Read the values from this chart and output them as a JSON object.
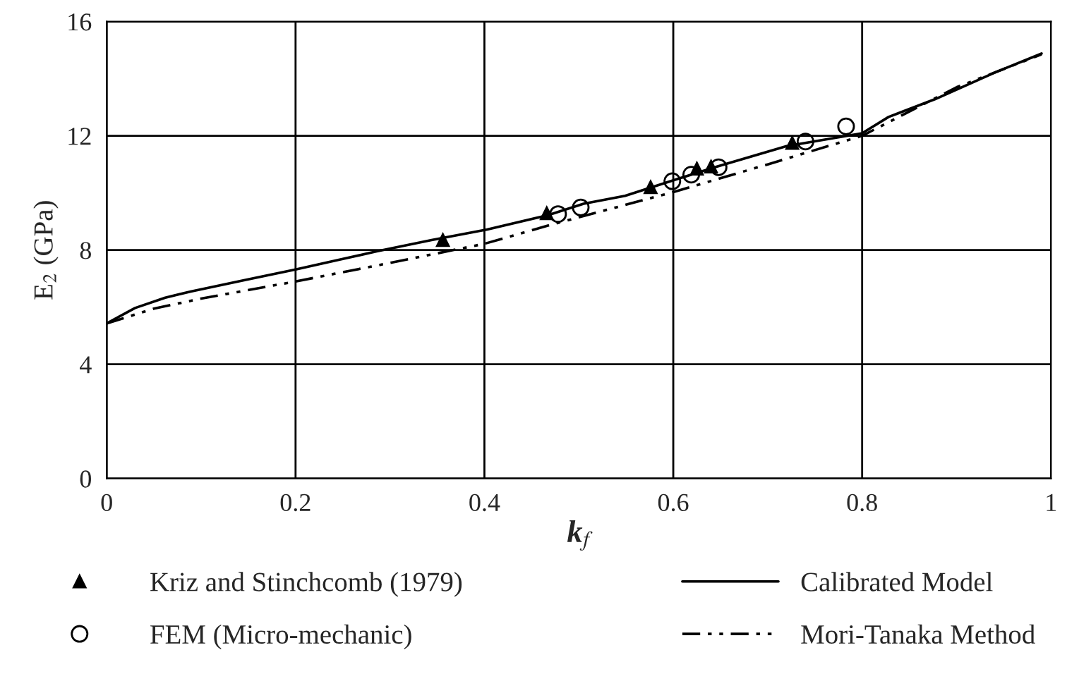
{
  "chart_data": {
    "type": "line",
    "xlabel": "k$_{f}$",
    "ylabel": "E$_{2}$ (GPa)",
    "xlim": [
      0,
      1
    ],
    "xticks": [
      0,
      0.2,
      0.4,
      0.6,
      0.8,
      1
    ],
    "ylim": [
      0,
      16
    ],
    "yticks": [
      0,
      4,
      8,
      12,
      16
    ],
    "grid": true,
    "legend": "bottom",
    "series": [
      {
        "name": "Kriz and Stinchcomb (1979)",
        "type": "scatter",
        "marker": "triangle",
        "color": "#000000",
        "x": [
          0.356,
          0.466,
          0.576,
          0.625,
          0.64,
          0.726
        ],
        "values": [
          8.35,
          9.29,
          10.2,
          10.85,
          10.92,
          11.75
        ]
      },
      {
        "name": "FEM (Micro-mechanic)",
        "type": "scatter",
        "marker": "circle",
        "color": "#000000",
        "x": [
          0.478,
          0.502,
          0.599,
          0.619,
          0.648,
          0.74,
          0.783
        ],
        "values": [
          9.26,
          9.49,
          10.41,
          10.64,
          10.9,
          11.8,
          12.33
        ]
      },
      {
        "name": "Calibrated Model",
        "line_style": "solid",
        "color": "#000000",
        "x": [
          0,
          0.03,
          0.062,
          0.089,
          0.148,
          0.2,
          0.245,
          0.285,
          0.344,
          0.403,
          0.466,
          0.505,
          0.549,
          0.6,
          0.647,
          0.72,
          0.8,
          0.828,
          0.877,
          0.941,
          0.99
        ],
        "values": [
          5.43,
          5.97,
          6.33,
          6.55,
          6.96,
          7.32,
          7.65,
          7.95,
          8.35,
          8.72,
          9.21,
          9.62,
          9.9,
          10.44,
          10.93,
          11.64,
          12.09,
          12.66,
          13.28,
          14.22,
          14.88
        ]
      },
      {
        "name": "Mori-Tanaka Method",
        "line_style": "dashdot",
        "color": "#000000",
        "x": [
          0,
          0.05,
          0.1,
          0.2,
          0.3,
          0.4,
          0.47,
          0.6,
          0.7,
          0.8,
          0.9,
          0.99
        ],
        "values": [
          5.43,
          5.95,
          6.3,
          6.9,
          7.55,
          8.22,
          8.88,
          10.03,
          11.0,
          12.0,
          13.7,
          14.85
        ]
      }
    ]
  }
}
